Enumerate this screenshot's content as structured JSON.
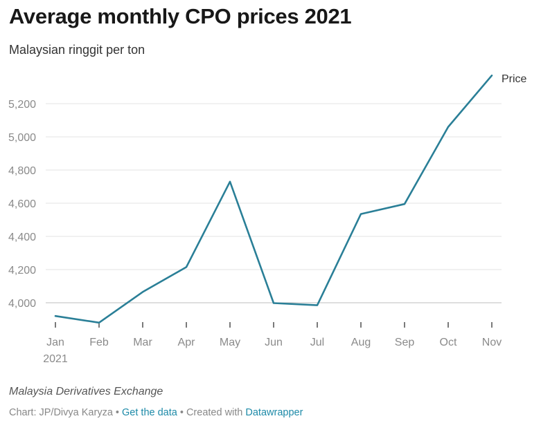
{
  "header": {
    "title": "Average monthly CPO prices 2021",
    "subtitle": "Malaysian ringgit per ton"
  },
  "colors": {
    "line": "#2a7f97",
    "grid": "#e3e3e3",
    "link": "#1d8aa8"
  },
  "chart_data": {
    "type": "line",
    "title": "Average monthly CPO prices 2021",
    "subtitle": "Malaysian ringgit per ton",
    "xlabel": "",
    "ylabel": "",
    "categories": [
      "Jan",
      "Feb",
      "Mar",
      "Apr",
      "May",
      "Jun",
      "Jul",
      "Aug",
      "Sep",
      "Oct",
      "Nov"
    ],
    "x_year_label": "2021",
    "series": [
      {
        "name": "Price",
        "values": [
          3920,
          3880,
          4065,
          4215,
          4730,
          3998,
          3985,
          4535,
          4595,
          5060,
          5370
        ]
      }
    ],
    "yticks": [
      4000,
      4200,
      4400,
      4600,
      4800,
      5000,
      5200
    ],
    "ytick_labels": [
      "4,000",
      "4,200",
      "4,400",
      "4,600",
      "4,800",
      "5,000",
      "5,200"
    ],
    "ylim": [
      3870,
      5400
    ],
    "grid": true,
    "legend": "inline-label at end of line"
  },
  "footer": {
    "source": "Malaysia Derivatives Exchange",
    "credit_prefix": "Chart: JP/Divya Karyza • ",
    "get_data_label": "Get the data",
    "created_with": " • Created with ",
    "datawrapper_label": "Datawrapper"
  }
}
